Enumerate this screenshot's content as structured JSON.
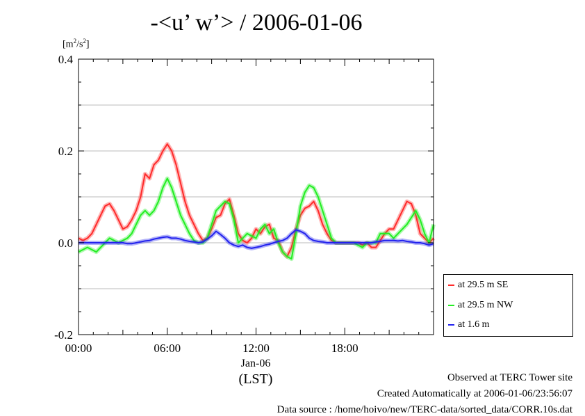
{
  "page_title": "-<u’ w’> / 2006-01-06",
  "unit_label": "[m²/s²]",
  "footer": {
    "observed": "Observed at TERC Tower site",
    "created": "Created Automatically at 2006-01-06/23:56:07",
    "source": "Data source : /home/hoivo/new/TERC-data/sorted_data/CORR.10s.dat"
  },
  "chart_data": {
    "type": "line",
    "title": "-<u’ w’> / 2006-01-06",
    "ylabel": "[m²/s²]",
    "xlabel": "Jan-06",
    "xlabel2": "(LST)",
    "xlim": [
      0,
      24
    ],
    "ylim": [
      -0.2,
      0.4
    ],
    "x_ticks": [
      0,
      6,
      12,
      18
    ],
    "x_tick_labels": [
      "00:00",
      "06:00",
      "12:00",
      "18:00"
    ],
    "y_ticks": [
      -0.2,
      0.0,
      0.2,
      0.4
    ],
    "y_tick_labels": [
      "-0.2",
      "0.0",
      "0.2",
      "0.4"
    ],
    "grid": true,
    "legend_position": "right, below plot",
    "series": [
      {
        "name": "at 29.5 m SE",
        "color": "#ff2a2a",
        "x": [
          0,
          0.3,
          0.6,
          0.9,
          1.2,
          1.5,
          1.8,
          2.1,
          2.4,
          2.7,
          3.0,
          3.3,
          3.6,
          3.9,
          4.2,
          4.5,
          4.8,
          5.1,
          5.4,
          5.7,
          6.0,
          6.3,
          6.6,
          6.9,
          7.2,
          7.5,
          7.8,
          8.1,
          8.4,
          8.7,
          9.0,
          9.3,
          9.6,
          9.9,
          10.2,
          10.5,
          10.8,
          11.1,
          11.4,
          11.7,
          12.0,
          12.3,
          12.6,
          12.9,
          13.2,
          13.5,
          13.8,
          14.1,
          14.4,
          14.7,
          15.0,
          15.3,
          15.6,
          15.9,
          16.2,
          16.5,
          16.8,
          17.1,
          17.4,
          17.7,
          18.0,
          18.3,
          18.6,
          18.9,
          19.2,
          19.5,
          19.8,
          20.1,
          20.4,
          20.7,
          21.0,
          21.3,
          21.6,
          21.9,
          22.2,
          22.5,
          22.8,
          23.1,
          23.4,
          23.7,
          24.0
        ],
        "values": [
          0.01,
          0.005,
          0.01,
          0.02,
          0.04,
          0.06,
          0.08,
          0.085,
          0.07,
          0.05,
          0.03,
          0.035,
          0.05,
          0.07,
          0.1,
          0.15,
          0.14,
          0.17,
          0.18,
          0.2,
          0.215,
          0.2,
          0.17,
          0.13,
          0.09,
          0.06,
          0.04,
          0.02,
          0.005,
          0.01,
          0.03,
          0.055,
          0.06,
          0.085,
          0.095,
          0.06,
          0.02,
          0.005,
          0.0,
          0.01,
          0.03,
          0.02,
          0.035,
          0.04,
          0.01,
          0.005,
          -0.02,
          -0.03,
          -0.01,
          0.03,
          0.06,
          0.075,
          0.08,
          0.09,
          0.07,
          0.04,
          0.02,
          0.005,
          0.0,
          0.0,
          0.0,
          0.0,
          0.0,
          0.0,
          -0.005,
          0.0,
          -0.01,
          -0.01,
          0.005,
          0.02,
          0.03,
          0.03,
          0.05,
          0.07,
          0.09,
          0.085,
          0.06,
          0.02,
          0.01,
          0.0,
          0.01
        ]
      },
      {
        "name": "at 29.5 m NW",
        "color": "#22ee22",
        "x": [
          0,
          0.3,
          0.6,
          0.9,
          1.2,
          1.5,
          1.8,
          2.1,
          2.4,
          2.7,
          3.0,
          3.3,
          3.6,
          3.9,
          4.2,
          4.5,
          4.8,
          5.1,
          5.4,
          5.7,
          6.0,
          6.3,
          6.6,
          6.9,
          7.2,
          7.5,
          7.8,
          8.1,
          8.4,
          8.7,
          9.0,
          9.3,
          9.6,
          9.9,
          10.2,
          10.5,
          10.8,
          11.1,
          11.4,
          11.7,
          12.0,
          12.3,
          12.6,
          12.9,
          13.2,
          13.5,
          13.8,
          14.1,
          14.4,
          14.7,
          15.0,
          15.3,
          15.6,
          15.9,
          16.2,
          16.5,
          16.8,
          17.1,
          17.4,
          17.7,
          18.0,
          18.3,
          18.6,
          18.9,
          19.2,
          19.5,
          19.8,
          20.1,
          20.4,
          20.7,
          21.0,
          21.3,
          21.6,
          21.9,
          22.2,
          22.5,
          22.8,
          23.1,
          23.4,
          23.7,
          24.0
        ],
        "values": [
          -0.02,
          -0.015,
          -0.01,
          -0.015,
          -0.02,
          -0.01,
          0.0,
          0.01,
          0.005,
          0.0,
          0.005,
          0.01,
          0.02,
          0.04,
          0.06,
          0.07,
          0.06,
          0.07,
          0.09,
          0.12,
          0.14,
          0.12,
          0.09,
          0.06,
          0.04,
          0.02,
          0.005,
          0.0,
          0.0,
          0.01,
          0.04,
          0.07,
          0.08,
          0.09,
          0.085,
          0.05,
          0.0,
          0.01,
          0.02,
          0.015,
          0.01,
          0.03,
          0.04,
          0.02,
          0.03,
          0.0,
          -0.02,
          -0.03,
          -0.035,
          0.02,
          0.08,
          0.11,
          0.125,
          0.12,
          0.1,
          0.07,
          0.04,
          0.01,
          0.0,
          0.0,
          0.0,
          0.0,
          0.0,
          -0.005,
          -0.01,
          0.0,
          0.0,
          0.0,
          0.02,
          0.02,
          0.02,
          0.01,
          0.02,
          0.03,
          0.04,
          0.055,
          0.07,
          0.05,
          0.02,
          0.0,
          0.04
        ]
      },
      {
        "name": "at 1.6 m",
        "color": "#2222ee",
        "x": [
          0,
          0.3,
          0.6,
          0.9,
          1.2,
          1.5,
          1.8,
          2.1,
          2.4,
          2.7,
          3.0,
          3.3,
          3.6,
          3.9,
          4.2,
          4.5,
          4.8,
          5.1,
          5.4,
          5.7,
          6.0,
          6.3,
          6.6,
          6.9,
          7.2,
          7.5,
          7.8,
          8.1,
          8.4,
          8.7,
          9.0,
          9.3,
          9.6,
          9.9,
          10.2,
          10.5,
          10.8,
          11.1,
          11.4,
          11.7,
          12.0,
          12.3,
          12.6,
          12.9,
          13.2,
          13.5,
          13.8,
          14.1,
          14.4,
          14.7,
          15.0,
          15.3,
          15.6,
          15.9,
          16.2,
          16.5,
          16.8,
          17.1,
          17.4,
          17.7,
          18.0,
          18.3,
          18.6,
          18.9,
          19.2,
          19.5,
          19.8,
          20.1,
          20.4,
          20.7,
          21.0,
          21.3,
          21.6,
          21.9,
          22.2,
          22.5,
          22.8,
          23.1,
          23.4,
          23.7,
          24.0
        ],
        "values": [
          0.0,
          0.0,
          0.0,
          0.0,
          0.0,
          0.0,
          0.0,
          0.0,
          0.0,
          0.0,
          0.0,
          -0.002,
          -0.002,
          0.0,
          0.002,
          0.004,
          0.005,
          0.008,
          0.01,
          0.012,
          0.013,
          0.01,
          0.01,
          0.008,
          0.005,
          0.003,
          0.002,
          0.0,
          0.002,
          0.008,
          0.015,
          0.025,
          0.018,
          0.01,
          0.0,
          -0.005,
          -0.008,
          -0.005,
          -0.01,
          -0.012,
          -0.01,
          -0.008,
          -0.005,
          -0.003,
          0.0,
          0.003,
          0.005,
          0.01,
          0.02,
          0.028,
          0.025,
          0.02,
          0.01,
          0.005,
          0.003,
          0.002,
          0.0,
          0.0,
          0.0,
          0.0,
          0.0,
          0.0,
          0.0,
          0.0,
          0.0,
          0.0,
          0.0,
          0.002,
          0.003,
          0.005,
          0.005,
          0.005,
          0.004,
          0.005,
          0.003,
          0.002,
          0.0,
          0.0,
          -0.002,
          -0.005,
          -0.002
        ]
      }
    ]
  }
}
